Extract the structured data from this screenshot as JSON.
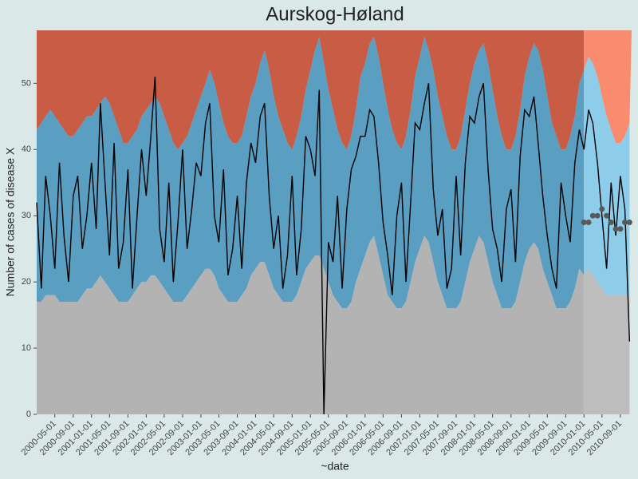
{
  "chart_data": {
    "type": "line",
    "title": "Aurskog-Høland",
    "xlabel": "~date",
    "ylabel": "Number of cases of disease X",
    "xlim": [
      "2000-01-01",
      "2010-11-15"
    ],
    "ylim": [
      0,
      58
    ],
    "yticks": [
      0,
      10,
      20,
      30,
      40,
      50
    ],
    "xticks": [
      "2000-05-01",
      "2000-09-01",
      "2001-01-01",
      "2001-05-01",
      "2001-09-01",
      "2002-01-01",
      "2002-05-01",
      "2002-09-01",
      "2003-01-01",
      "2003-05-01",
      "2003-09-01",
      "2004-01-01",
      "2004-05-01",
      "2004-09-01",
      "2005-01-01",
      "2005-05-01",
      "2005-09-01",
      "2006-01-01",
      "2006-05-01",
      "2006-09-01",
      "2007-01-01",
      "2007-05-01",
      "2007-09-01",
      "2008-01-01",
      "2008-05-01",
      "2008-09-01",
      "2009-01-01",
      "2009-05-01",
      "2009-09-01",
      "2010-01-01",
      "2010-05-01",
      "2010-09-01"
    ],
    "forecast_start": "2010-01-01",
    "above_color": "#c85c45",
    "above_forecast_color": "#f98c6f",
    "x": [
      "2000-01-01",
      "2000-02-01",
      "2000-03-01",
      "2000-04-01",
      "2000-05-01",
      "2000-06-01",
      "2000-07-01",
      "2000-08-01",
      "2000-09-01",
      "2000-10-01",
      "2000-11-01",
      "2000-12-01",
      "2001-01-01",
      "2001-02-01",
      "2001-03-01",
      "2001-04-01",
      "2001-05-01",
      "2001-06-01",
      "2001-07-01",
      "2001-08-01",
      "2001-09-01",
      "2001-10-01",
      "2001-11-01",
      "2001-12-01",
      "2002-01-01",
      "2002-02-01",
      "2002-03-01",
      "2002-04-01",
      "2002-05-01",
      "2002-06-01",
      "2002-07-01",
      "2002-08-01",
      "2002-09-01",
      "2002-10-01",
      "2002-11-01",
      "2002-12-01",
      "2003-01-01",
      "2003-02-01",
      "2003-03-01",
      "2003-04-01",
      "2003-05-01",
      "2003-06-01",
      "2003-07-01",
      "2003-08-01",
      "2003-09-01",
      "2003-10-01",
      "2003-11-01",
      "2003-12-01",
      "2004-01-01",
      "2004-02-01",
      "2004-03-01",
      "2004-04-01",
      "2004-05-01",
      "2004-06-01",
      "2004-07-01",
      "2004-08-01",
      "2004-09-01",
      "2004-10-01",
      "2004-11-01",
      "2004-12-01",
      "2005-01-01",
      "2005-02-01",
      "2005-03-01",
      "2005-04-01",
      "2005-05-01",
      "2005-06-01",
      "2005-07-01",
      "2005-08-01",
      "2005-09-01",
      "2005-10-01",
      "2005-11-01",
      "2005-12-01",
      "2006-01-01",
      "2006-02-01",
      "2006-03-01",
      "2006-04-01",
      "2006-05-01",
      "2006-06-01",
      "2006-07-01",
      "2006-08-01",
      "2006-09-01",
      "2006-10-01",
      "2006-11-01",
      "2006-12-01",
      "2007-01-01",
      "2007-02-01",
      "2007-03-01",
      "2007-04-01",
      "2007-05-01",
      "2007-06-01",
      "2007-07-01",
      "2007-08-01",
      "2007-09-01",
      "2007-10-01",
      "2007-11-01",
      "2007-12-01",
      "2008-01-01",
      "2008-02-01",
      "2008-03-01",
      "2008-04-01",
      "2008-05-01",
      "2008-06-01",
      "2008-07-01",
      "2008-08-01",
      "2008-09-01",
      "2008-10-01",
      "2008-11-01",
      "2008-12-01",
      "2009-01-01",
      "2009-02-01",
      "2009-03-01",
      "2009-04-01",
      "2009-05-01",
      "2009-06-01",
      "2009-07-01",
      "2009-08-01",
      "2009-09-01",
      "2009-10-01",
      "2009-11-01",
      "2009-12-01",
      "2010-01-01",
      "2010-02-01",
      "2010-03-01",
      "2010-04-01",
      "2010-05-01",
      "2010-06-01",
      "2010-07-01",
      "2010-08-01",
      "2010-09-01",
      "2010-10-01",
      "2010-11-01"
    ],
    "series": [
      {
        "kind": "upper",
        "color": "#5a9ec2",
        "forecast_color": "#8dcdea",
        "values": [
          43,
          44,
          45,
          46,
          45,
          44,
          43,
          42,
          42,
          43,
          44,
          45,
          45,
          46,
          47,
          48,
          47,
          45,
          43,
          41,
          41,
          42,
          43,
          45,
          46,
          47,
          48,
          47,
          45,
          43,
          41,
          40,
          41,
          42,
          44,
          46,
          48,
          50,
          52,
          50,
          47,
          44,
          42,
          41,
          41,
          42,
          45,
          48,
          50,
          53,
          55,
          52,
          48,
          45,
          43,
          41,
          40,
          42,
          45,
          49,
          52,
          55,
          57,
          53,
          49,
          46,
          43,
          41,
          40,
          42,
          46,
          51,
          53,
          56,
          57,
          54,
          50,
          46,
          43,
          41,
          40,
          42,
          46,
          51,
          54,
          57,
          55,
          52,
          48,
          45,
          42,
          40,
          40,
          42,
          46,
          50,
          53,
          55,
          56,
          53,
          49,
          45,
          42,
          40,
          40,
          42,
          46,
          51,
          54,
          56,
          55,
          52,
          48,
          44,
          42,
          40,
          40,
          42,
          45,
          50,
          52,
          54,
          53,
          51,
          48,
          45,
          43,
          41,
          41,
          42,
          44
        ]
      },
      {
        "kind": "lower",
        "color": "#b3b3b3",
        "forecast_color": "#bdbdbd",
        "values": [
          17,
          17,
          18,
          18,
          18,
          17,
          17,
          17,
          17,
          17,
          18,
          19,
          19,
          20,
          21,
          20,
          19,
          18,
          17,
          17,
          17,
          18,
          19,
          20,
          20,
          21,
          21,
          20,
          19,
          18,
          17,
          17,
          17,
          18,
          19,
          20,
          21,
          22,
          22,
          21,
          19,
          18,
          17,
          17,
          17,
          18,
          19,
          21,
          22,
          23,
          23,
          21,
          19,
          18,
          17,
          17,
          17,
          18,
          20,
          22,
          23,
          24,
          24,
          22,
          20,
          18,
          17,
          16,
          16,
          17,
          20,
          22,
          24,
          26,
          27,
          24,
          21,
          18,
          17,
          16,
          16,
          17,
          20,
          23,
          25,
          27,
          26,
          23,
          20,
          18,
          16,
          16,
          16,
          17,
          20,
          23,
          25,
          27,
          26,
          23,
          20,
          18,
          16,
          16,
          16,
          17,
          20,
          23,
          25,
          26,
          25,
          22,
          20,
          18,
          16,
          16,
          16,
          17,
          19,
          22,
          21,
          22,
          21,
          20,
          19,
          18,
          18,
          18,
          18,
          18,
          18
        ]
      },
      {
        "kind": "line",
        "color": "#000000",
        "values": [
          32,
          19,
          36,
          30,
          22,
          38,
          27,
          20,
          33,
          36,
          25,
          30,
          38,
          28,
          47,
          35,
          24,
          41,
          22,
          26,
          37,
          19,
          30,
          40,
          33,
          42,
          51,
          28,
          23,
          35,
          20,
          29,
          40,
          25,
          31,
          38,
          36,
          44,
          47,
          30,
          26,
          37,
          21,
          25,
          33,
          22,
          35,
          41,
          38,
          45,
          47,
          33,
          25,
          30,
          19,
          24,
          36,
          21,
          28,
          42,
          40,
          36,
          49,
          0,
          26,
          23,
          33,
          19,
          31,
          37,
          39,
          42,
          42,
          46,
          45,
          38,
          29,
          24,
          18,
          30,
          35,
          20,
          32,
          44,
          43,
          47,
          50,
          34,
          27,
          31,
          19,
          22,
          36,
          24,
          38,
          45,
          44,
          48,
          50,
          37,
          28,
          25,
          20,
          31,
          34,
          23,
          39,
          46,
          45,
          48,
          41,
          33,
          27,
          22,
          19,
          35,
          30,
          26,
          38,
          43,
          40,
          46,
          44,
          38,
          30,
          22,
          35,
          27,
          36,
          31,
          11
        ]
      },
      {
        "kind": "points",
        "color": "#595959",
        "x": [
          "2010-01-01",
          "2010-02-01",
          "2010-03-01",
          "2010-04-01",
          "2010-05-01",
          "2010-06-01",
          "2010-07-01",
          "2010-08-01",
          "2010-09-01",
          "2010-10-01",
          "2010-11-01"
        ],
        "values": [
          29,
          29,
          30,
          30,
          31,
          30,
          29,
          28,
          28,
          29,
          29
        ]
      }
    ]
  }
}
